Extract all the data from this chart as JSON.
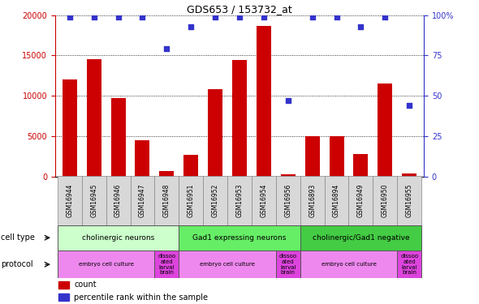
{
  "title": "GDS653 / 153732_at",
  "samples": [
    "GSM16944",
    "GSM16945",
    "GSM16946",
    "GSM16947",
    "GSM16948",
    "GSM16951",
    "GSM16952",
    "GSM16953",
    "GSM16954",
    "GSM16956",
    "GSM16893",
    "GSM16894",
    "GSM16949",
    "GSM16950",
    "GSM16955"
  ],
  "counts": [
    12000,
    14500,
    9700,
    4500,
    700,
    2700,
    10800,
    14400,
    18700,
    300,
    5000,
    5000,
    2800,
    11500,
    400
  ],
  "percentile_ranks": [
    99,
    99,
    99,
    99,
    79,
    93,
    99,
    99,
    99,
    47,
    99,
    99,
    93,
    99,
    44
  ],
  "ylim_left": [
    0,
    20000
  ],
  "ylim_right": [
    0,
    100
  ],
  "yticks_left": [
    0,
    5000,
    10000,
    15000,
    20000
  ],
  "yticks_right": [
    0,
    25,
    50,
    75,
    100
  ],
  "bar_color": "#cc0000",
  "dot_color": "#3333cc",
  "cell_types": [
    {
      "label": "cholinergic neurons",
      "start": 0,
      "end": 5,
      "color": "#ccffcc"
    },
    {
      "label": "Gad1 expressing neurons",
      "start": 5,
      "end": 10,
      "color": "#66ee66"
    },
    {
      "label": "cholinergic/Gad1 negative",
      "start": 10,
      "end": 15,
      "color": "#44cc44"
    }
  ],
  "protocols": [
    {
      "label": "embryo cell culture",
      "start": 0,
      "end": 4,
      "color": "#ee88ee"
    },
    {
      "label": "dissoo\nated\nlarval\nbrain",
      "start": 4,
      "end": 5,
      "color": "#dd44dd"
    },
    {
      "label": "embryo cell culture",
      "start": 5,
      "end": 9,
      "color": "#ee88ee"
    },
    {
      "label": "dissoo\nated\nlarval\nbrain",
      "start": 9,
      "end": 10,
      "color": "#dd44dd"
    },
    {
      "label": "embryo cell culture",
      "start": 10,
      "end": 14,
      "color": "#ee88ee"
    },
    {
      "label": "dissoo\nated\nlarval\nbrain",
      "start": 14,
      "end": 15,
      "color": "#dd44dd"
    }
  ],
  "legend_count_color": "#cc0000",
  "legend_dot_color": "#3333cc"
}
